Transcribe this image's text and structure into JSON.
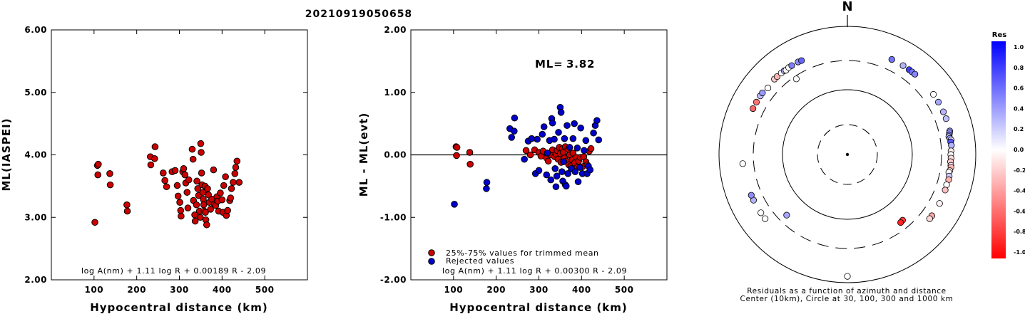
{
  "title": "20210919050658",
  "chart_data": [
    {
      "type": "scatter",
      "name": "ml-vs-distance",
      "xlabel": "Hypocentral distance (km)",
      "ylabel": "ML(IASPEI)",
      "xlim": [
        0,
        600
      ],
      "ylim": [
        2.0,
        6.0
      ],
      "xticks": [
        "100",
        "200",
        "300",
        "400",
        "500"
      ],
      "yticks": [
        "2.00",
        "3.00",
        "4.00",
        "5.00",
        "6.00"
      ],
      "formula": "log A(nm) + 1.11 log R + 0.00189 R - 2.09",
      "color": "#cc0000",
      "points": [
        [
          102,
          2.92
        ],
        [
          108,
          3.83
        ],
        [
          110,
          3.85
        ],
        [
          109,
          3.68
        ],
        [
          137,
          3.7
        ],
        [
          138,
          3.52
        ],
        [
          177,
          3.2
        ],
        [
          178,
          3.1
        ],
        [
          232,
          3.97
        ],
        [
          233,
          3.84
        ],
        [
          242,
          3.94
        ],
        [
          243,
          4.13
        ],
        [
          262,
          3.71
        ],
        [
          266,
          3.59
        ],
        [
          270,
          3.49
        ],
        [
          283,
          3.73
        ],
        [
          290,
          3.75
        ],
        [
          295,
          3.51
        ],
        [
          297,
          3.34
        ],
        [
          301,
          3.24
        ],
        [
          303,
          3.11
        ],
        [
          304,
          3.02
        ],
        [
          308,
          3.73
        ],
        [
          310,
          3.78
        ],
        [
          313,
          3.68
        ],
        [
          315,
          3.55
        ],
        [
          318,
          3.4
        ],
        [
          320,
          3.15
        ],
        [
          322,
          3.6
        ],
        [
          330,
          4.09
        ],
        [
          332,
          3.93
        ],
        [
          333,
          3.27
        ],
        [
          336,
          3.04
        ],
        [
          337,
          2.94
        ],
        [
          340,
          3.2
        ],
        [
          341,
          3.58
        ],
        [
          343,
          3.46
        ],
        [
          345,
          3.35
        ],
        [
          347,
          3.1
        ],
        [
          349,
          3.0
        ],
        [
          350,
          4.18
        ],
        [
          351,
          4.04
        ],
        [
          352,
          3.71
        ],
        [
          353,
          3.52
        ],
        [
          355,
          3.4
        ],
        [
          356,
          3.29
        ],
        [
          357,
          3.2
        ],
        [
          358,
          3.1
        ],
        [
          360,
          3.5
        ],
        [
          361,
          3.08
        ],
        [
          362,
          2.96
        ],
        [
          364,
          2.88
        ],
        [
          366,
          3.46
        ],
        [
          368,
          3.36
        ],
        [
          370,
          3.24
        ],
        [
          373,
          3.13
        ],
        [
          376,
          3.29
        ],
        [
          380,
          3.76
        ],
        [
          382,
          3.21
        ],
        [
          385,
          3.19
        ],
        [
          388,
          3.33
        ],
        [
          390,
          3.26
        ],
        [
          392,
          3.1
        ],
        [
          396,
          3.39
        ],
        [
          400,
          3.28
        ],
        [
          402,
          3.08
        ],
        [
          404,
          3.51
        ],
        [
          408,
          3.65
        ],
        [
          410,
          3.03
        ],
        [
          413,
          3.11
        ],
        [
          418,
          3.27
        ],
        [
          420,
          3.31
        ],
        [
          422,
          3.46
        ],
        [
          426,
          3.56
        ],
        [
          430,
          3.7
        ],
        [
          432,
          3.8
        ],
        [
          435,
          3.9
        ],
        [
          440,
          3.56
        ]
      ]
    },
    {
      "type": "scatter",
      "name": "residual-vs-distance",
      "xlabel": "Hypocentral distance (km)",
      "ylabel": "ML - ML(evt)",
      "xlim": [
        0,
        600
      ],
      "ylim": [
        -2.0,
        2.0
      ],
      "xticks": [
        "100",
        "200",
        "300",
        "400",
        "500"
      ],
      "yticks": [
        "-2.00",
        "-1.00",
        "0.00",
        "1.00",
        "2.00"
      ],
      "ml_label": "ML=",
      "ml_value": "3.82",
      "formula": "log A(nm) + 1.11 log R + 0.00300 R - 2.09",
      "legend": [
        {
          "label": "25%-75% values for trimmed mean",
          "color": "#cc0000"
        },
        {
          "label": "Rejected values",
          "color": "#0000cc"
        }
      ],
      "series": [
        {
          "name": "25%-75% values for trimmed mean",
          "color": "#cc0000",
          "points": [
            [
              106,
              0.13
            ],
            [
              108,
              0.12
            ],
            [
              107,
              -0.01
            ],
            [
              138,
              0.04
            ],
            [
              139,
              -0.15
            ],
            [
              270,
              0.07
            ],
            [
              280,
              0.0
            ],
            [
              290,
              0.08
            ],
            [
              300,
              0.04
            ],
            [
              305,
              -0.02
            ],
            [
              310,
              0.06
            ],
            [
              318,
              -0.05
            ],
            [
              322,
              -0.1
            ],
            [
              328,
              0.0
            ],
            [
              332,
              0.08
            ],
            [
              337,
              -0.03
            ],
            [
              340,
              0.01
            ],
            [
              343,
              0.07
            ],
            [
              345,
              -0.07
            ],
            [
              348,
              0.12
            ],
            [
              350,
              0.02
            ],
            [
              352,
              -0.12
            ],
            [
              355,
              0.1
            ],
            [
              357,
              0.04
            ],
            [
              360,
              -0.05
            ],
            [
              362,
              0.13
            ],
            [
              365,
              -0.1
            ],
            [
              368,
              0.09
            ],
            [
              370,
              -0.16
            ],
            [
              372,
              0.0
            ],
            [
              375,
              -0.18
            ],
            [
              378,
              -0.08
            ],
            [
              380,
              0.03
            ],
            [
              384,
              -0.13
            ],
            [
              388,
              -0.04
            ],
            [
              390,
              -0.2
            ],
            [
              393,
              -0.1
            ],
            [
              397,
              -0.04
            ],
            [
              402,
              -0.19
            ],
            [
              405,
              -0.03
            ],
            [
              410,
              -0.11
            ],
            [
              413,
              -0.16
            ],
            [
              418,
              0.06
            ],
            [
              422,
              0.1
            ]
          ]
        },
        {
          "name": "Rejected values",
          "color": "#0000cc",
          "points": [
            [
              102,
              -0.79
            ],
            [
              178,
              -0.44
            ],
            [
              177,
              -0.54
            ],
            [
              232,
              0.42
            ],
            [
              242,
              0.38
            ],
            [
              243,
              0.59
            ],
            [
              236,
              0.28
            ],
            [
              266,
              -0.07
            ],
            [
              275,
              0.22
            ],
            [
              283,
              0.26
            ],
            [
              292,
              -0.3
            ],
            [
              296,
              0.25
            ],
            [
              300,
              -0.25
            ],
            [
              308,
              0.33
            ],
            [
              312,
              0.45
            ],
            [
              320,
              0.03
            ],
            [
              318,
              -0.32
            ],
            [
              325,
              0.23
            ],
            [
              328,
              -0.4
            ],
            [
              330,
              0.58
            ],
            [
              332,
              0.51
            ],
            [
              336,
              0.25
            ],
            [
              338,
              -0.22
            ],
            [
              340,
              -0.51
            ],
            [
              342,
              -0.34
            ],
            [
              346,
              0.36
            ],
            [
              350,
              0.76
            ],
            [
              352,
              0.68
            ],
            [
              354,
              -0.27
            ],
            [
              356,
              -0.42
            ],
            [
              358,
              -0.11
            ],
            [
              360,
              0.26
            ],
            [
              362,
              -0.48
            ],
            [
              364,
              -0.5
            ],
            [
              366,
              0.47
            ],
            [
              368,
              -0.3
            ],
            [
              372,
              0.12
            ],
            [
              376,
              -0.22
            ],
            [
              380,
              0.26
            ],
            [
              383,
              0.5
            ],
            [
              385,
              -0.27
            ],
            [
              390,
              0.11
            ],
            [
              392,
              -0.43
            ],
            [
              396,
              -0.2
            ],
            [
              398,
              0.43
            ],
            [
              402,
              -0.3
            ],
            [
              406,
              0.07
            ],
            [
              410,
              0.23
            ],
            [
              413,
              -0.3
            ],
            [
              416,
              -0.18
            ],
            [
              420,
              -0.24
            ],
            [
              428,
              0.35
            ],
            [
              432,
              0.47
            ],
            [
              436,
              0.55
            ],
            [
              440,
              0.24
            ]
          ]
        }
      ]
    },
    {
      "type": "scatter",
      "name": "residual-polar",
      "north_label": "N",
      "caption_line1": "Residuals as a function of azimuth and distance",
      "caption_line2": "Center (10km), Circle at 30, 100, 300 and 1000 km",
      "colorbar": {
        "title": "Res",
        "ticks": [
          "1.0",
          "0.8",
          "0.6",
          "0.4",
          "0.2",
          "0.0",
          "-0.2",
          "-0.4",
          "-0.6",
          "-0.8",
          "-1.0"
        ],
        "max_color": "#0000ff",
        "mid_color": "#ffffff",
        "min_color": "#ff0000"
      },
      "rings_km": [
        30,
        100,
        300,
        1000
      ],
      "points_az_dist_res": [
        [
          25,
          440,
          0.55
        ],
        [
          32,
          440,
          0.3
        ],
        [
          36,
          440,
          0.75
        ],
        [
          38,
          440,
          0.55
        ],
        [
          40,
          440,
          0.48
        ],
        [
          55,
          440,
          0.0
        ],
        [
          60,
          440,
          0.35
        ],
        [
          66,
          440,
          0.3
        ],
        [
          70,
          440,
          0.25
        ],
        [
          77,
          440,
          0.45
        ],
        [
          78,
          430,
          0.35
        ],
        [
          79,
          420,
          0.55
        ],
        [
          80,
          410,
          0.2
        ],
        [
          81,
          420,
          0.4
        ],
        [
          82,
          435,
          0.1
        ],
        [
          83,
          425,
          0.65
        ],
        [
          85,
          430,
          0.3
        ],
        [
          88,
          420,
          -0.1
        ],
        [
          90,
          415,
          0.0
        ],
        [
          92,
          420,
          -0.15
        ],
        [
          94,
          415,
          -0.2
        ],
        [
          96,
          425,
          0.05
        ],
        [
          97,
          430,
          -0.3
        ],
        [
          99,
          420,
          -0.1
        ],
        [
          100,
          410,
          0.0
        ],
        [
          102,
          425,
          0.2
        ],
        [
          104,
          430,
          -0.3
        ],
        [
          107,
          420,
          0.0
        ],
        [
          110,
          425,
          -0.25
        ],
        [
          118,
          430,
          -0.05
        ],
        [
          126,
          430,
          -0.35
        ],
        [
          128,
          430,
          -0.15
        ],
        [
          140,
          220,
          -0.75
        ],
        [
          142,
          225,
          -0.85
        ],
        [
          180,
          800,
          0.0
        ],
        [
          225,
          220,
          0.35
        ],
        [
          232,
          430,
          0.0
        ],
        [
          236,
          430,
          0.0
        ],
        [
          244,
          430,
          0.3
        ],
        [
          247,
          430,
          0.45
        ],
        [
          265,
          440,
          0.0
        ],
        [
          296,
          440,
          -0.6
        ],
        [
          300,
          440,
          -0.55
        ],
        [
          304,
          440,
          0.25
        ],
        [
          306,
          440,
          0.4
        ],
        [
          310,
          420,
          0.0
        ],
        [
          316,
          440,
          -0.2
        ],
        [
          318,
          440,
          -0.3
        ],
        [
          321,
          440,
          0.0
        ],
        [
          323,
          440,
          0.3
        ],
        [
          324,
          430,
          0.0
        ],
        [
          326,
          440,
          0.0
        ],
        [
          328,
          440,
          0.5
        ],
        [
          332,
          440,
          0.45
        ],
        [
          334,
          435,
          0.6
        ],
        [
          326,
          270,
          0.0
        ]
      ]
    }
  ]
}
